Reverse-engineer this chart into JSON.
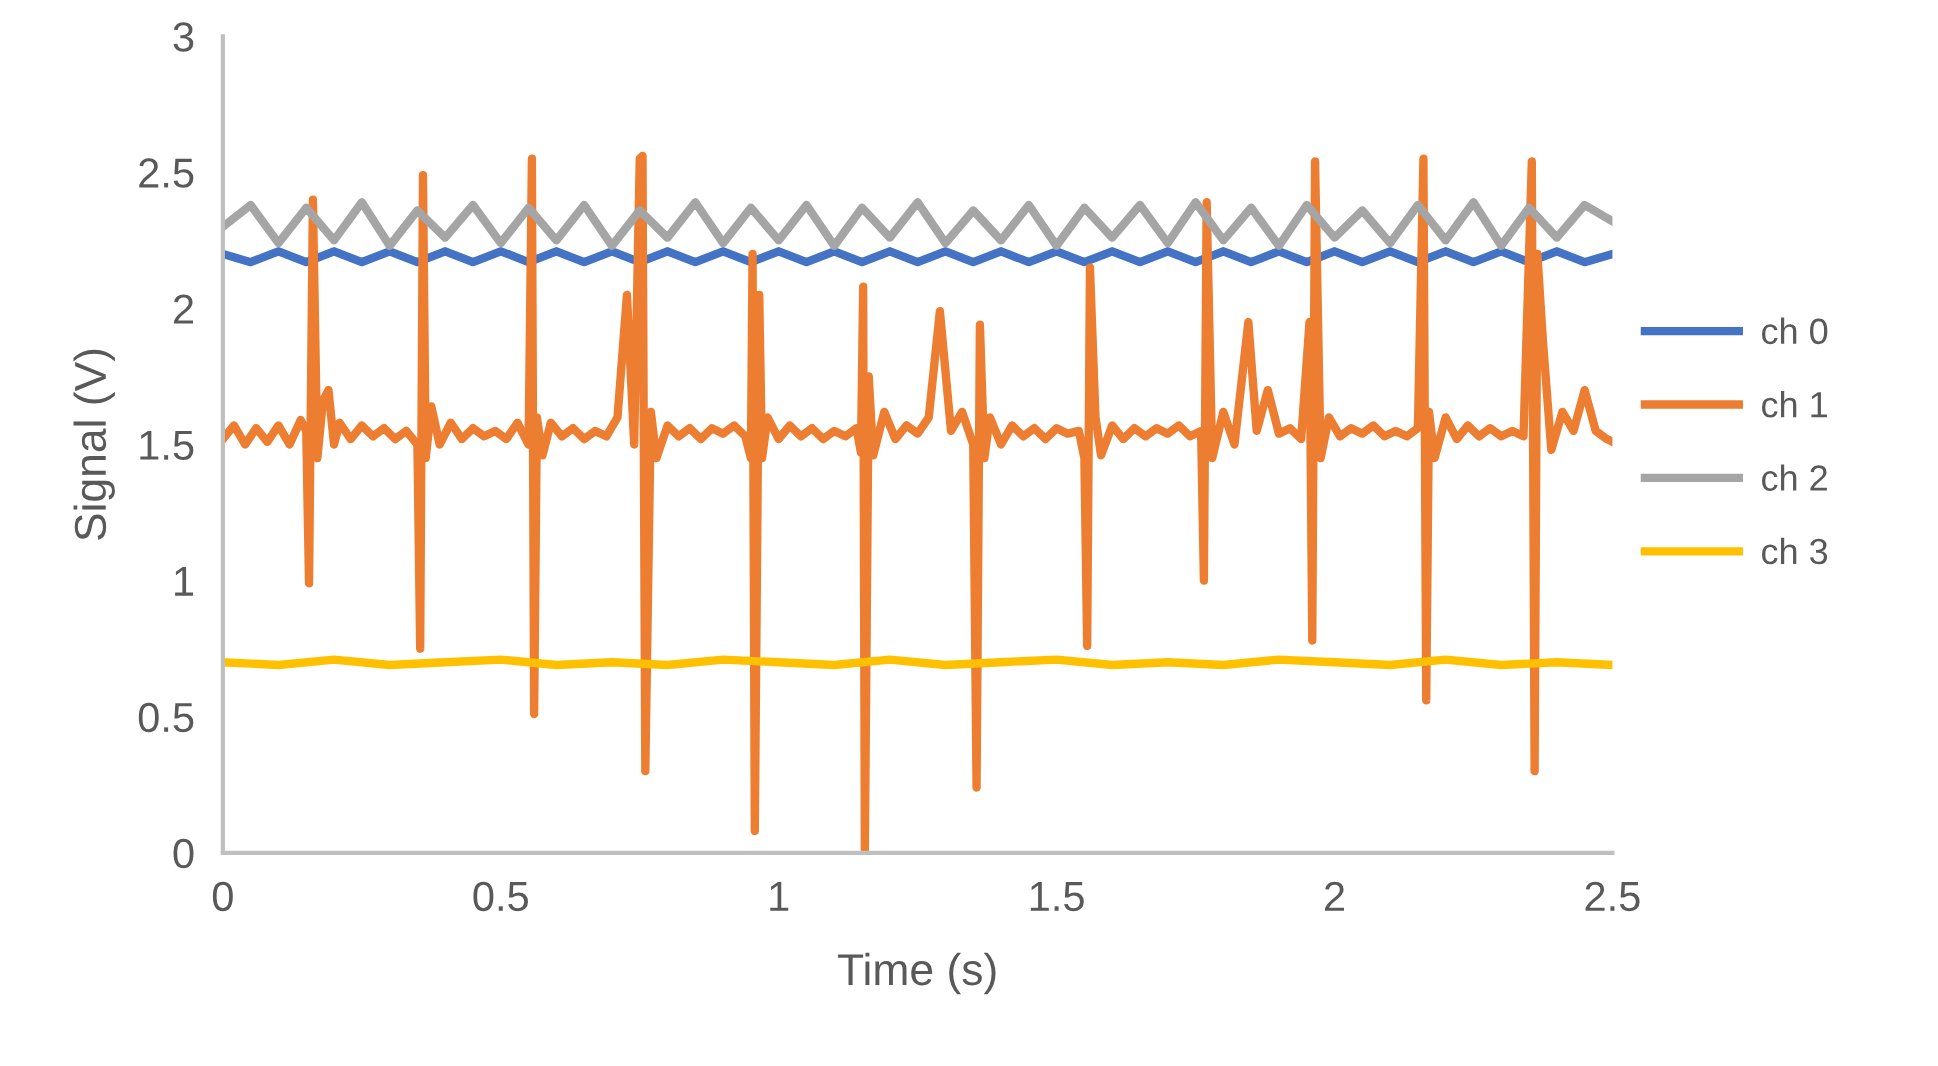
{
  "chart_data": {
    "type": "line",
    "xlabel": "Time (s)",
    "ylabel": "Signal (V)",
    "xlim": [
      0,
      2.5
    ],
    "xticks": [
      0,
      0.5,
      1,
      1.5,
      2,
      2.5
    ],
    "ylim": [
      0,
      3
    ],
    "yticks": [
      0,
      0.5,
      1,
      1.5,
      2,
      2.5,
      3
    ],
    "grid": false,
    "legend": "right",
    "marker": "none",
    "line_style": "solid",
    "series": [
      {
        "name": "ch 0",
        "color": "#4472c4",
        "x": [
          0,
          0.05,
          0.1,
          0.15,
          0.2,
          0.25,
          0.3,
          0.35,
          0.4,
          0.45,
          0.5,
          0.55,
          0.6,
          0.65,
          0.7,
          0.75,
          0.8,
          0.85,
          0.9,
          0.95,
          1.0,
          1.05,
          1.1,
          1.15,
          1.2,
          1.25,
          1.3,
          1.35,
          1.4,
          1.45,
          1.5,
          1.55,
          1.6,
          1.65,
          1.7,
          1.75,
          1.8,
          1.85,
          1.9,
          1.95,
          2.0,
          2.05,
          2.1,
          2.15,
          2.2,
          2.25,
          2.3,
          2.35,
          2.4,
          2.45,
          2.5
        ],
        "values": [
          2.2,
          2.17,
          2.21,
          2.17,
          2.21,
          2.17,
          2.21,
          2.17,
          2.21,
          2.17,
          2.21,
          2.17,
          2.21,
          2.17,
          2.21,
          2.17,
          2.21,
          2.17,
          2.21,
          2.17,
          2.21,
          2.17,
          2.21,
          2.17,
          2.21,
          2.17,
          2.21,
          2.17,
          2.21,
          2.17,
          2.21,
          2.17,
          2.21,
          2.17,
          2.21,
          2.17,
          2.21,
          2.17,
          2.21,
          2.17,
          2.21,
          2.17,
          2.21,
          2.17,
          2.21,
          2.17,
          2.21,
          2.17,
          2.21,
          2.17,
          2.2
        ]
      },
      {
        "name": "ch 1",
        "color": "#ed7d31",
        "x": [
          0,
          0.02,
          0.04,
          0.06,
          0.08,
          0.1,
          0.12,
          0.14,
          0.15,
          0.155,
          0.162,
          0.17,
          0.18,
          0.19,
          0.2,
          0.21,
          0.23,
          0.25,
          0.27,
          0.29,
          0.31,
          0.33,
          0.35,
          0.355,
          0.36,
          0.365,
          0.375,
          0.39,
          0.41,
          0.43,
          0.45,
          0.47,
          0.49,
          0.51,
          0.53,
          0.55,
          0.556,
          0.56,
          0.565,
          0.575,
          0.59,
          0.61,
          0.63,
          0.65,
          0.67,
          0.69,
          0.71,
          0.727,
          0.74,
          0.75,
          0.755,
          0.76,
          0.77,
          0.78,
          0.8,
          0.82,
          0.84,
          0.86,
          0.88,
          0.9,
          0.92,
          0.94,
          0.95,
          0.953,
          0.957,
          0.965,
          0.97,
          0.98,
          1.0,
          1.02,
          1.04,
          1.06,
          1.08,
          1.1,
          1.12,
          1.14,
          1.148,
          1.152,
          1.155,
          1.162,
          1.17,
          1.19,
          1.21,
          1.23,
          1.25,
          1.27,
          1.29,
          1.31,
          1.33,
          1.35,
          1.356,
          1.362,
          1.37,
          1.38,
          1.4,
          1.42,
          1.44,
          1.46,
          1.48,
          1.5,
          1.52,
          1.54,
          1.55,
          1.555,
          1.56,
          1.57,
          1.58,
          1.6,
          1.62,
          1.64,
          1.66,
          1.68,
          1.7,
          1.72,
          1.74,
          1.76,
          1.765,
          1.77,
          1.78,
          1.8,
          1.82,
          1.845,
          1.86,
          1.88,
          1.9,
          1.92,
          1.94,
          1.955,
          1.96,
          1.965,
          1.975,
          1.99,
          2.01,
          2.03,
          2.05,
          2.07,
          2.09,
          2.11,
          2.13,
          2.15,
          2.16,
          2.165,
          2.17,
          2.18,
          2.2,
          2.22,
          2.24,
          2.26,
          2.28,
          2.3,
          2.32,
          2.34,
          2.355,
          2.36,
          2.365,
          2.375,
          2.39,
          2.41,
          2.43,
          2.45,
          2.47,
          2.49,
          2.5
        ],
        "values": [
          1.52,
          1.57,
          1.5,
          1.56,
          1.51,
          1.57,
          1.5,
          1.59,
          1.55,
          0.99,
          2.4,
          1.45,
          1.66,
          1.7,
          1.5,
          1.58,
          1.52,
          1.57,
          1.53,
          1.56,
          1.52,
          1.55,
          1.5,
          0.75,
          2.49,
          1.45,
          1.64,
          1.5,
          1.58,
          1.52,
          1.56,
          1.53,
          1.55,
          1.52,
          1.58,
          1.5,
          2.55,
          0.51,
          1.6,
          1.46,
          1.58,
          1.53,
          1.56,
          1.52,
          1.55,
          1.53,
          1.6,
          2.05,
          1.5,
          2.55,
          2.56,
          0.3,
          1.62,
          1.45,
          1.57,
          1.53,
          1.56,
          1.52,
          1.56,
          1.54,
          1.57,
          1.53,
          1.45,
          2.2,
          0.08,
          2.05,
          1.45,
          1.6,
          1.52,
          1.57,
          1.53,
          1.56,
          1.52,
          1.55,
          1.53,
          1.56,
          1.47,
          2.08,
          0.01,
          1.75,
          1.46,
          1.62,
          1.52,
          1.57,
          1.54,
          1.6,
          1.99,
          1.55,
          1.62,
          1.5,
          0.24,
          1.94,
          1.45,
          1.6,
          1.5,
          1.57,
          1.53,
          1.56,
          1.52,
          1.56,
          1.54,
          1.55,
          1.45,
          0.76,
          2.15,
          1.6,
          1.46,
          1.57,
          1.52,
          1.56,
          1.53,
          1.56,
          1.54,
          1.57,
          1.53,
          1.55,
          1.0,
          2.39,
          1.45,
          1.62,
          1.5,
          1.95,
          1.55,
          1.7,
          1.54,
          1.56,
          1.52,
          1.95,
          0.78,
          2.54,
          1.45,
          1.6,
          1.53,
          1.56,
          1.54,
          1.57,
          1.53,
          1.55,
          1.53,
          1.56,
          2.55,
          0.56,
          1.62,
          1.45,
          1.6,
          1.52,
          1.57,
          1.53,
          1.56,
          1.53,
          1.55,
          1.53,
          2.54,
          0.3,
          2.2,
          1.88,
          1.48,
          1.62,
          1.55,
          1.7,
          1.55,
          1.52,
          1.51
        ]
      },
      {
        "name": "ch 2",
        "color": "#a5a5a5",
        "x": [
          0,
          0.05,
          0.1,
          0.15,
          0.2,
          0.25,
          0.3,
          0.35,
          0.4,
          0.45,
          0.5,
          0.55,
          0.6,
          0.65,
          0.7,
          0.75,
          0.8,
          0.85,
          0.9,
          0.95,
          1.0,
          1.05,
          1.1,
          1.15,
          1.2,
          1.25,
          1.3,
          1.35,
          1.4,
          1.45,
          1.5,
          1.55,
          1.6,
          1.65,
          1.7,
          1.75,
          1.8,
          1.85,
          1.9,
          1.95,
          2.0,
          2.05,
          2.1,
          2.15,
          2.2,
          2.25,
          2.3,
          2.35,
          2.4,
          2.45,
          2.5
        ],
        "values": [
          2.3,
          2.38,
          2.24,
          2.37,
          2.25,
          2.39,
          2.23,
          2.36,
          2.26,
          2.38,
          2.24,
          2.37,
          2.25,
          2.38,
          2.23,
          2.36,
          2.26,
          2.39,
          2.24,
          2.37,
          2.25,
          2.38,
          2.23,
          2.37,
          2.26,
          2.39,
          2.24,
          2.36,
          2.25,
          2.38,
          2.23,
          2.37,
          2.26,
          2.38,
          2.24,
          2.39,
          2.25,
          2.37,
          2.23,
          2.38,
          2.26,
          2.36,
          2.24,
          2.38,
          2.25,
          2.39,
          2.23,
          2.37,
          2.26,
          2.38,
          2.32
        ]
      },
      {
        "name": "ch 3",
        "color": "#ffc000",
        "x": [
          0,
          0.1,
          0.2,
          0.3,
          0.4,
          0.5,
          0.6,
          0.7,
          0.8,
          0.9,
          1.0,
          1.1,
          1.2,
          1.3,
          1.4,
          1.5,
          1.6,
          1.7,
          1.8,
          1.9,
          2.0,
          2.1,
          2.2,
          2.3,
          2.4,
          2.5
        ],
        "values": [
          0.7,
          0.69,
          0.71,
          0.69,
          0.7,
          0.71,
          0.69,
          0.7,
          0.69,
          0.71,
          0.7,
          0.69,
          0.71,
          0.69,
          0.7,
          0.71,
          0.69,
          0.7,
          0.69,
          0.71,
          0.7,
          0.69,
          0.71,
          0.69,
          0.7,
          0.69
        ]
      }
    ]
  }
}
